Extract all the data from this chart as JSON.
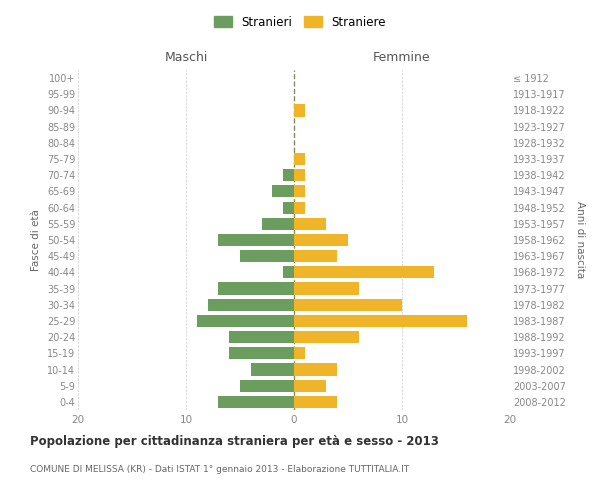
{
  "age_groups": [
    "0-4",
    "5-9",
    "10-14",
    "15-19",
    "20-24",
    "25-29",
    "30-34",
    "35-39",
    "40-44",
    "45-49",
    "50-54",
    "55-59",
    "60-64",
    "65-69",
    "70-74",
    "75-79",
    "80-84",
    "85-89",
    "90-94",
    "95-99",
    "100+"
  ],
  "birth_years": [
    "2008-2012",
    "2003-2007",
    "1998-2002",
    "1993-1997",
    "1988-1992",
    "1983-1987",
    "1978-1982",
    "1973-1977",
    "1968-1972",
    "1963-1967",
    "1958-1962",
    "1953-1957",
    "1948-1952",
    "1943-1947",
    "1938-1942",
    "1933-1937",
    "1928-1932",
    "1923-1927",
    "1918-1922",
    "1913-1917",
    "≤ 1912"
  ],
  "maschi": [
    7,
    5,
    4,
    6,
    6,
    9,
    8,
    7,
    1,
    5,
    7,
    3,
    1,
    2,
    1,
    0,
    0,
    0,
    0,
    0,
    0
  ],
  "femmine": [
    4,
    3,
    4,
    1,
    6,
    16,
    10,
    6,
    13,
    4,
    5,
    3,
    1,
    1,
    1,
    1,
    0,
    0,
    1,
    0,
    0
  ],
  "maschi_color": "#6b9e5e",
  "femmine_color": "#f0b429",
  "background_color": "#ffffff",
  "grid_color": "#cccccc",
  "title": "Popolazione per cittadinanza straniera per età e sesso - 2013",
  "subtitle": "COMUNE DI MELISSA (KR) - Dati ISTAT 1° gennaio 2013 - Elaborazione TUTTITALIA.IT",
  "xlabel_left": "Maschi",
  "xlabel_right": "Femmine",
  "ylabel_left": "Fasce di età",
  "ylabel_right": "Anni di nascita",
  "legend_maschi": "Stranieri",
  "legend_femmine": "Straniere",
  "xlim": 20,
  "label_color": "#888888",
  "dashed_color": "#888866"
}
